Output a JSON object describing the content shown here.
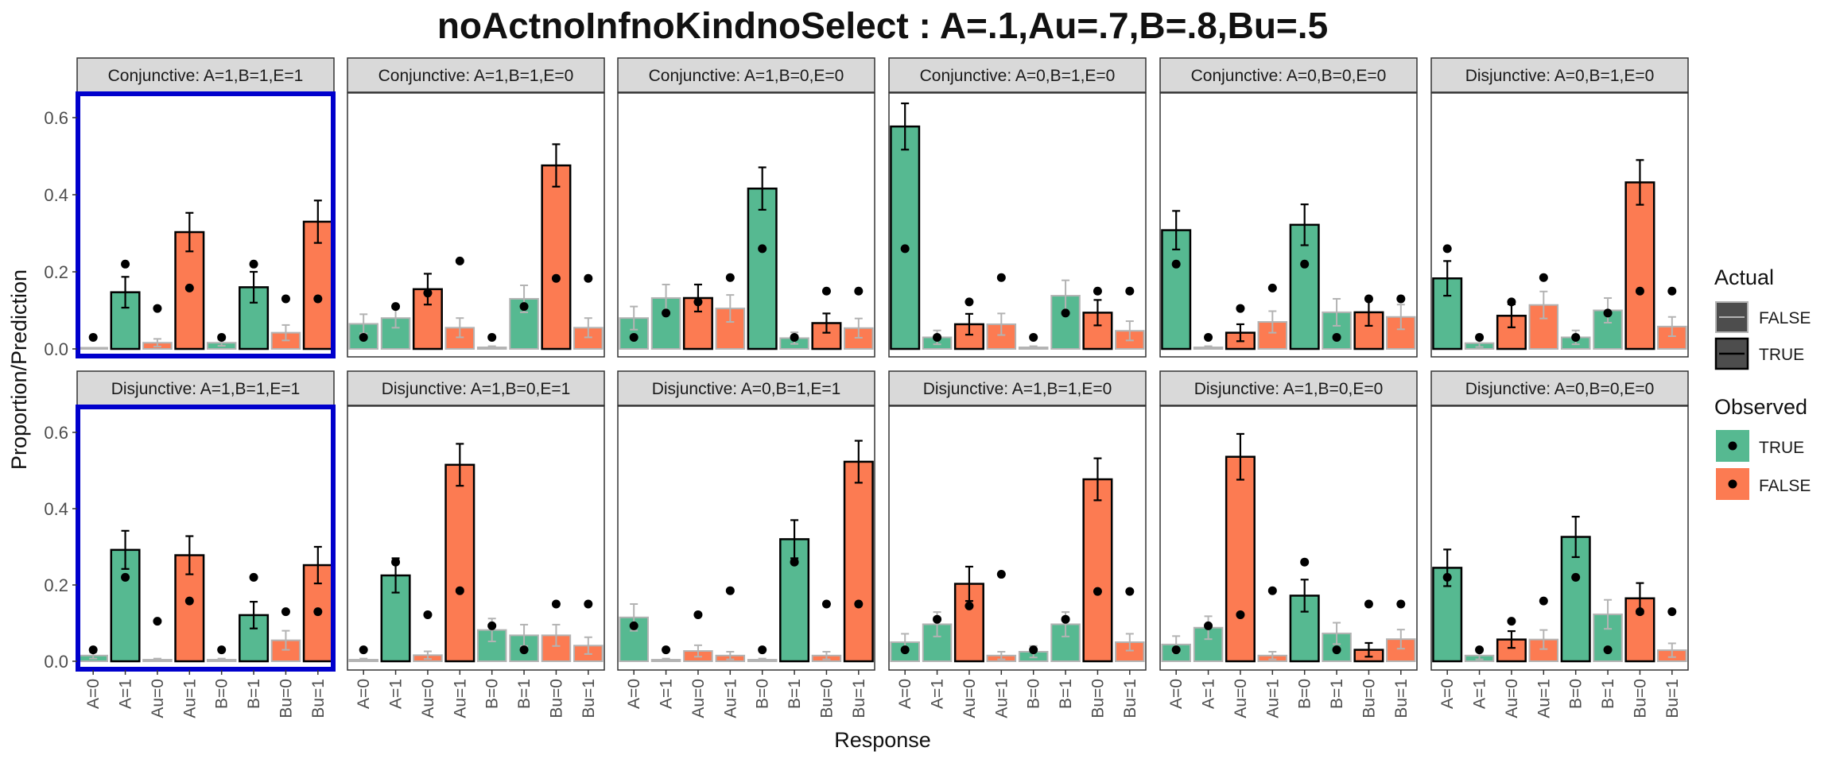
{
  "chart_data": {
    "type": "bar",
    "title": "noActnoInfnoKindnoSelect : A=.1,Au=.7,B=.8,Bu=.5",
    "xlabel": "Response",
    "ylabel": "Proportion/Prediction",
    "categories": [
      "A=0",
      "A=1",
      "Au=0",
      "Au=1",
      "B=0",
      "B=1",
      "Bu=0",
      "Bu=1"
    ],
    "ylim": [
      -0.02,
      0.66
    ],
    "yticks": [
      0.0,
      0.2,
      0.4,
      0.6
    ],
    "ytick_labels": [
      "0.0",
      "0.2",
      "0.4",
      "0.6"
    ],
    "grid": false,
    "colors": {
      "observed_true": "#56B991",
      "observed_false": "#FC7B52",
      "highlight_border": "#0000CC",
      "strip_fill": "#D9D9D9",
      "point": "#000000"
    },
    "legend": {
      "placement": "right",
      "actual": {
        "title": "Actual",
        "items": [
          "FALSE",
          "TRUE"
        ]
      },
      "observed": {
        "title": "Observed",
        "items": [
          "TRUE",
          "FALSE"
        ]
      }
    },
    "observed_by_category": [
      true,
      true,
      false,
      false,
      true,
      true,
      false,
      false
    ],
    "panels": [
      {
        "label": "Conjunctive: A=1,B=1,E=1",
        "highlighted": true,
        "actual": [
          false,
          true,
          false,
          true,
          false,
          true,
          false,
          true
        ],
        "values": [
          0.0,
          0.147,
          0.016,
          0.303,
          0.016,
          0.16,
          0.042,
          0.33
        ],
        "errors": [
          0.0,
          0.04,
          0.01,
          0.05,
          0.008,
          0.04,
          0.02,
          0.055
        ],
        "prediction": [
          0.03,
          0.22,
          0.105,
          0.158,
          0.03,
          0.22,
          0.13,
          0.13
        ]
      },
      {
        "label": "Conjunctive: A=1,B=1,E=0",
        "highlighted": false,
        "actual": [
          false,
          false,
          true,
          false,
          false,
          false,
          true,
          false
        ],
        "values": [
          0.065,
          0.08,
          0.155,
          0.055,
          0.004,
          0.13,
          0.476,
          0.055
        ],
        "errors": [
          0.025,
          0.025,
          0.04,
          0.025,
          0.003,
          0.035,
          0.055,
          0.025
        ],
        "prediction": [
          0.03,
          0.11,
          0.145,
          0.228,
          0.03,
          0.11,
          0.183,
          0.183
        ]
      },
      {
        "label": "Conjunctive: A=1,B=0,E=0",
        "highlighted": false,
        "actual": [
          false,
          false,
          true,
          false,
          true,
          false,
          true,
          false
        ],
        "values": [
          0.08,
          0.132,
          0.132,
          0.105,
          0.416,
          0.028,
          0.067,
          0.054
        ],
        "errors": [
          0.03,
          0.035,
          0.035,
          0.035,
          0.055,
          0.015,
          0.025,
          0.025
        ],
        "prediction": [
          0.03,
          0.093,
          0.122,
          0.185,
          0.26,
          0.03,
          0.15,
          0.15
        ]
      },
      {
        "label": "Conjunctive: A=0,B=1,E=0",
        "highlighted": false,
        "actual": [
          true,
          false,
          true,
          false,
          false,
          false,
          true,
          false
        ],
        "values": [
          0.577,
          0.03,
          0.064,
          0.064,
          0.004,
          0.138,
          0.094,
          0.047
        ],
        "errors": [
          0.06,
          0.018,
          0.027,
          0.028,
          0.003,
          0.04,
          0.033,
          0.025
        ],
        "prediction": [
          0.26,
          0.03,
          0.122,
          0.185,
          0.03,
          0.093,
          0.15,
          0.15
        ]
      },
      {
        "label": "Conjunctive: A=0,B=0,E=0",
        "highlighted": false,
        "actual": [
          true,
          false,
          true,
          false,
          true,
          false,
          true,
          false
        ],
        "values": [
          0.308,
          0.004,
          0.042,
          0.07,
          0.322,
          0.095,
          0.095,
          0.083
        ],
        "errors": [
          0.05,
          0.003,
          0.022,
          0.028,
          0.053,
          0.035,
          0.035,
          0.032
        ],
        "prediction": [
          0.22,
          0.03,
          0.105,
          0.158,
          0.22,
          0.03,
          0.13,
          0.13
        ]
      },
      {
        "label": "Disjunctive: A=0,B=1,E=0",
        "highlighted": false,
        "actual": [
          true,
          false,
          true,
          false,
          false,
          false,
          true,
          false
        ],
        "values": [
          0.183,
          0.015,
          0.086,
          0.114,
          0.03,
          0.1,
          0.432,
          0.058
        ],
        "errors": [
          0.045,
          0.01,
          0.03,
          0.035,
          0.018,
          0.032,
          0.058,
          0.025
        ],
        "prediction": [
          0.26,
          0.03,
          0.122,
          0.185,
          0.03,
          0.093,
          0.15,
          0.15
        ]
      },
      {
        "label": "Disjunctive: A=1,B=1,E=1",
        "highlighted": true,
        "actual": [
          false,
          true,
          false,
          true,
          false,
          true,
          false,
          true
        ],
        "values": [
          0.015,
          0.292,
          0.004,
          0.278,
          0.004,
          0.121,
          0.055,
          0.252
        ],
        "errors": [
          0.008,
          0.05,
          0.003,
          0.05,
          0.003,
          0.035,
          0.025,
          0.048
        ],
        "prediction": [
          0.03,
          0.22,
          0.105,
          0.158,
          0.03,
          0.22,
          0.13,
          0.13
        ]
      },
      {
        "label": "Disjunctive: A=1,B=0,E=1",
        "highlighted": false,
        "actual": [
          false,
          true,
          false,
          true,
          false,
          false,
          false,
          false
        ],
        "values": [
          0.004,
          0.225,
          0.016,
          0.515,
          0.082,
          0.068,
          0.068,
          0.041
        ],
        "errors": [
          0.003,
          0.045,
          0.01,
          0.055,
          0.03,
          0.028,
          0.028,
          0.022
        ],
        "prediction": [
          0.03,
          0.26,
          0.122,
          0.185,
          0.093,
          0.03,
          0.15,
          0.15
        ]
      },
      {
        "label": "Disjunctive: A=0,B=1,E=1",
        "highlighted": false,
        "actual": [
          false,
          false,
          false,
          false,
          false,
          true,
          false,
          true
        ],
        "values": [
          0.115,
          0.004,
          0.027,
          0.015,
          0.004,
          0.32,
          0.015,
          0.523
        ],
        "errors": [
          0.035,
          0.003,
          0.015,
          0.01,
          0.003,
          0.05,
          0.01,
          0.055
        ],
        "prediction": [
          0.093,
          0.03,
          0.122,
          0.185,
          0.03,
          0.26,
          0.15,
          0.15
        ]
      },
      {
        "label": "Disjunctive: A=1,B=1,E=0",
        "highlighted": false,
        "actual": [
          false,
          false,
          true,
          false,
          false,
          false,
          true,
          false
        ],
        "values": [
          0.05,
          0.097,
          0.203,
          0.015,
          0.025,
          0.097,
          0.477,
          0.05
        ],
        "errors": [
          0.022,
          0.032,
          0.045,
          0.01,
          0.015,
          0.032,
          0.055,
          0.022
        ],
        "prediction": [
          0.03,
          0.11,
          0.145,
          0.228,
          0.03,
          0.11,
          0.183,
          0.183
        ]
      },
      {
        "label": "Disjunctive: A=1,B=0,E=0",
        "highlighted": false,
        "actual": [
          false,
          false,
          true,
          false,
          true,
          false,
          true,
          false
        ],
        "values": [
          0.044,
          0.088,
          0.536,
          0.015,
          0.172,
          0.073,
          0.03,
          0.058
        ],
        "errors": [
          0.022,
          0.03,
          0.06,
          0.01,
          0.042,
          0.028,
          0.018,
          0.025
        ],
        "prediction": [
          0.03,
          0.093,
          0.122,
          0.185,
          0.26,
          0.03,
          0.15,
          0.15
        ]
      },
      {
        "label": "Disjunctive: A=0,B=0,E=0",
        "highlighted": false,
        "actual": [
          true,
          false,
          true,
          false,
          true,
          false,
          true,
          false
        ],
        "values": [
          0.245,
          0.015,
          0.057,
          0.057,
          0.326,
          0.123,
          0.165,
          0.029
        ],
        "errors": [
          0.048,
          0.01,
          0.022,
          0.025,
          0.053,
          0.038,
          0.04,
          0.018
        ],
        "prediction": [
          0.22,
          0.03,
          0.105,
          0.158,
          0.22,
          0.03,
          0.13,
          0.13
        ]
      }
    ]
  }
}
